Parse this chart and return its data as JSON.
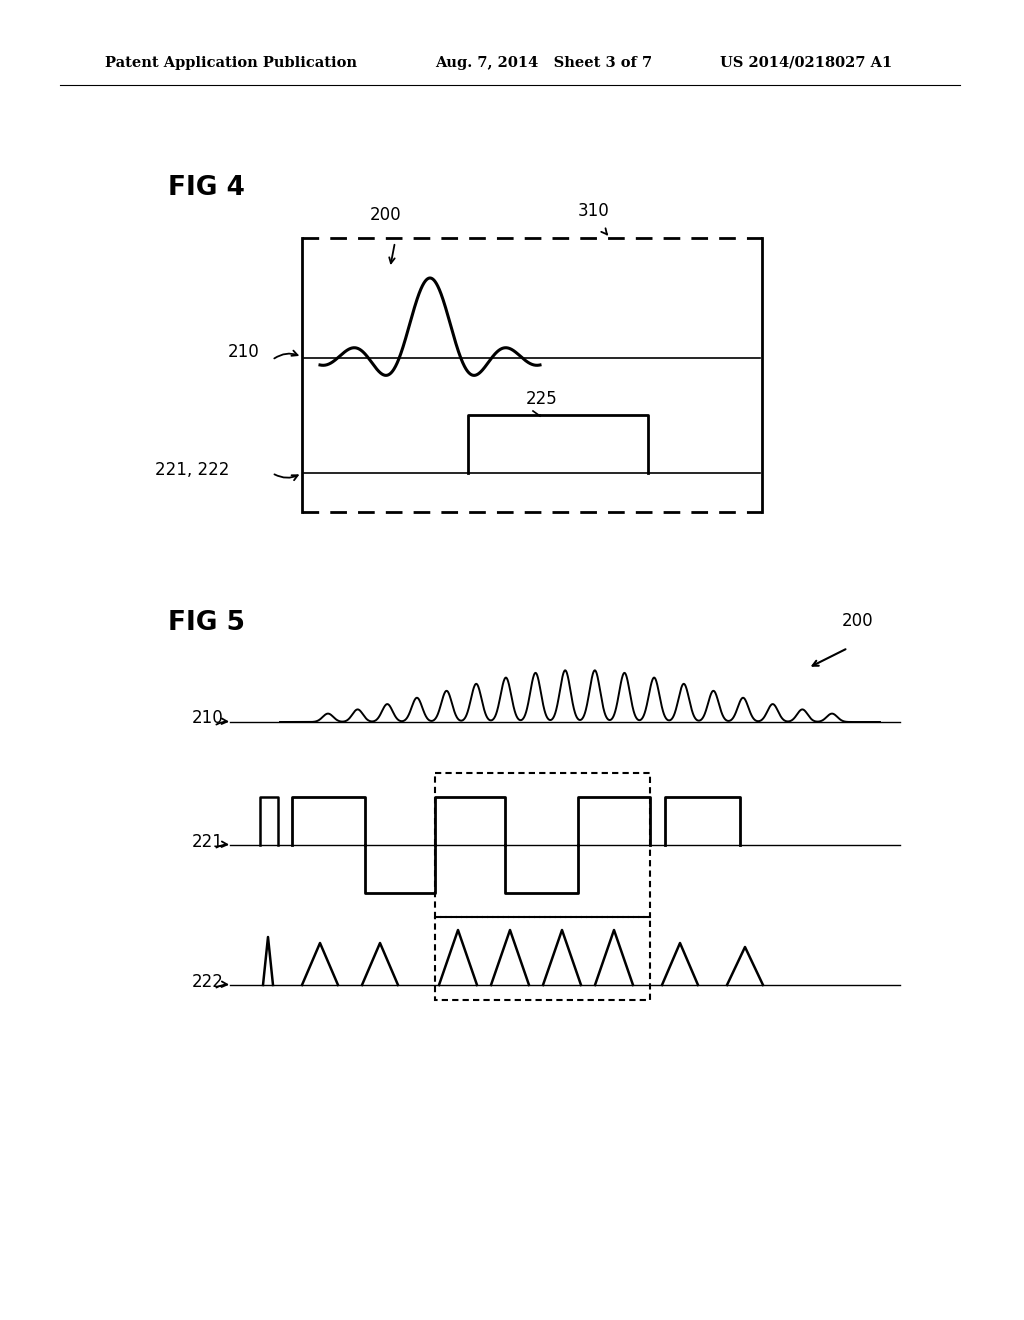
{
  "bg_color": "#ffffff",
  "header_left": "Patent Application Publication",
  "header_center": "Aug. 7, 2014   Sheet 3 of 7",
  "header_right": "US 2014/0218027 A1",
  "fig4_label": "FIG 4",
  "fig5_label": "FIG 5",
  "label_200_fig4": "200",
  "label_310": "310",
  "label_210_fig4": "210",
  "label_225": "225",
  "label_221_222": "221, 222",
  "label_200_fig5": "200",
  "label_210_fig5": "210",
  "label_221": "221",
  "label_222": "222"
}
